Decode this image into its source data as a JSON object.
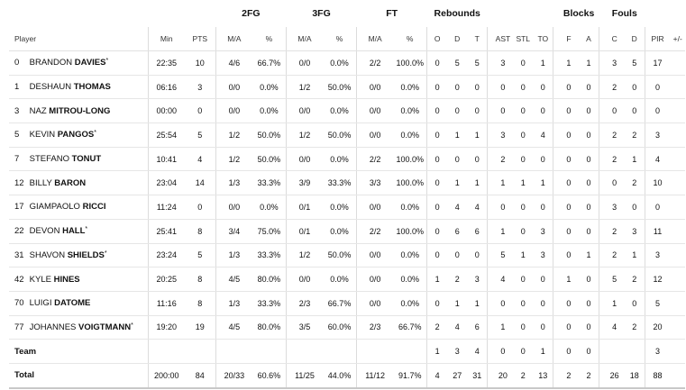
{
  "groups": {
    "fg2": "2FG",
    "fg3": "3FG",
    "ft": "FT",
    "rebounds": "Rebounds",
    "blocks": "Blocks",
    "fouls": "Fouls"
  },
  "headers": {
    "player": "Player",
    "min": "Min",
    "pts": "PTS",
    "fg2_ma": "M/A",
    "fg2_pct": "%",
    "fg3_ma": "M/A",
    "fg3_pct": "%",
    "ft_ma": "M/A",
    "ft_pct": "%",
    "o": "O",
    "d": "D",
    "t": "T",
    "ast": "AST",
    "stl": "STL",
    "to": "TO",
    "f": "F",
    "a": "A",
    "c": "C",
    "fd": "D",
    "pir": "PIR",
    "pm": "+/-"
  },
  "players": [
    {
      "num": "0",
      "first": "BRANDON",
      "last": "DAVIES",
      "starter": "*",
      "min": "22:35",
      "pts": "10",
      "fg2_ma": "4/6",
      "fg2_pct": "66.7%",
      "fg3_ma": "0/0",
      "fg3_pct": "0.0%",
      "ft_ma": "2/2",
      "ft_pct": "100.0%",
      "o": "0",
      "d": "5",
      "t": "5",
      "ast": "3",
      "stl": "0",
      "to": "1",
      "f": "1",
      "a": "1",
      "c": "3",
      "fd": "5",
      "pir": "17",
      "pm": ""
    },
    {
      "num": "1",
      "first": "DESHAUN",
      "last": "THOMAS",
      "starter": "",
      "min": "06:16",
      "pts": "3",
      "fg2_ma": "0/0",
      "fg2_pct": "0.0%",
      "fg3_ma": "1/2",
      "fg3_pct": "50.0%",
      "ft_ma": "0/0",
      "ft_pct": "0.0%",
      "o": "0",
      "d": "0",
      "t": "0",
      "ast": "0",
      "stl": "0",
      "to": "0",
      "f": "0",
      "a": "0",
      "c": "2",
      "fd": "0",
      "pir": "0",
      "pm": ""
    },
    {
      "num": "3",
      "first": "NAZ",
      "last": "MITROU-LONG",
      "starter": "",
      "min": "00:00",
      "pts": "0",
      "fg2_ma": "0/0",
      "fg2_pct": "0.0%",
      "fg3_ma": "0/0",
      "fg3_pct": "0.0%",
      "ft_ma": "0/0",
      "ft_pct": "0.0%",
      "o": "0",
      "d": "0",
      "t": "0",
      "ast": "0",
      "stl": "0",
      "to": "0",
      "f": "0",
      "a": "0",
      "c": "0",
      "fd": "0",
      "pir": "0",
      "pm": ""
    },
    {
      "num": "5",
      "first": "KEVIN",
      "last": "PANGOS",
      "starter": "*",
      "min": "25:54",
      "pts": "5",
      "fg2_ma": "1/2",
      "fg2_pct": "50.0%",
      "fg3_ma": "1/2",
      "fg3_pct": "50.0%",
      "ft_ma": "0/0",
      "ft_pct": "0.0%",
      "o": "0",
      "d": "1",
      "t": "1",
      "ast": "3",
      "stl": "0",
      "to": "4",
      "f": "0",
      "a": "0",
      "c": "2",
      "fd": "2",
      "pir": "3",
      "pm": ""
    },
    {
      "num": "7",
      "first": "STEFANO",
      "last": "TONUT",
      "starter": "",
      "min": "10:41",
      "pts": "4",
      "fg2_ma": "1/2",
      "fg2_pct": "50.0%",
      "fg3_ma": "0/0",
      "fg3_pct": "0.0%",
      "ft_ma": "2/2",
      "ft_pct": "100.0%",
      "o": "0",
      "d": "0",
      "t": "0",
      "ast": "2",
      "stl": "0",
      "to": "0",
      "f": "0",
      "a": "0",
      "c": "2",
      "fd": "1",
      "pir": "4",
      "pm": ""
    },
    {
      "num": "12",
      "first": "BILLY",
      "last": "BARON",
      "starter": "",
      "min": "23:04",
      "pts": "14",
      "fg2_ma": "1/3",
      "fg2_pct": "33.3%",
      "fg3_ma": "3/9",
      "fg3_pct": "33.3%",
      "ft_ma": "3/3",
      "ft_pct": "100.0%",
      "o": "0",
      "d": "1",
      "t": "1",
      "ast": "1",
      "stl": "1",
      "to": "1",
      "f": "0",
      "a": "0",
      "c": "0",
      "fd": "2",
      "pir": "10",
      "pm": ""
    },
    {
      "num": "17",
      "first": "GIAMPAOLO",
      "last": "RICCI",
      "starter": "",
      "min": "11:24",
      "pts": "0",
      "fg2_ma": "0/0",
      "fg2_pct": "0.0%",
      "fg3_ma": "0/1",
      "fg3_pct": "0.0%",
      "ft_ma": "0/0",
      "ft_pct": "0.0%",
      "o": "0",
      "d": "4",
      "t": "4",
      "ast": "0",
      "stl": "0",
      "to": "0",
      "f": "0",
      "a": "0",
      "c": "3",
      "fd": "0",
      "pir": "0",
      "pm": ""
    },
    {
      "num": "22",
      "first": "DEVON",
      "last": "HALL",
      "starter": "*",
      "min": "25:41",
      "pts": "8",
      "fg2_ma": "3/4",
      "fg2_pct": "75.0%",
      "fg3_ma": "0/1",
      "fg3_pct": "0.0%",
      "ft_ma": "2/2",
      "ft_pct": "100.0%",
      "o": "0",
      "d": "6",
      "t": "6",
      "ast": "1",
      "stl": "0",
      "to": "3",
      "f": "0",
      "a": "0",
      "c": "2",
      "fd": "3",
      "pir": "11",
      "pm": ""
    },
    {
      "num": "31",
      "first": "SHAVON",
      "last": "SHIELDS",
      "starter": "*",
      "min": "23:24",
      "pts": "5",
      "fg2_ma": "1/3",
      "fg2_pct": "33.3%",
      "fg3_ma": "1/2",
      "fg3_pct": "50.0%",
      "ft_ma": "0/0",
      "ft_pct": "0.0%",
      "o": "0",
      "d": "0",
      "t": "0",
      "ast": "5",
      "stl": "1",
      "to": "3",
      "f": "0",
      "a": "1",
      "c": "2",
      "fd": "1",
      "pir": "3",
      "pm": ""
    },
    {
      "num": "42",
      "first": "KYLE",
      "last": "HINES",
      "starter": "",
      "min": "20:25",
      "pts": "8",
      "fg2_ma": "4/5",
      "fg2_pct": "80.0%",
      "fg3_ma": "0/0",
      "fg3_pct": "0.0%",
      "ft_ma": "0/0",
      "ft_pct": "0.0%",
      "o": "1",
      "d": "2",
      "t": "3",
      "ast": "4",
      "stl": "0",
      "to": "0",
      "f": "1",
      "a": "0",
      "c": "5",
      "fd": "2",
      "pir": "12",
      "pm": ""
    },
    {
      "num": "70",
      "first": "LUIGI",
      "last": "DATOME",
      "starter": "",
      "min": "11:16",
      "pts": "8",
      "fg2_ma": "1/3",
      "fg2_pct": "33.3%",
      "fg3_ma": "2/3",
      "fg3_pct": "66.7%",
      "ft_ma": "0/0",
      "ft_pct": "0.0%",
      "o": "0",
      "d": "1",
      "t": "1",
      "ast": "0",
      "stl": "0",
      "to": "0",
      "f": "0",
      "a": "0",
      "c": "1",
      "fd": "0",
      "pir": "5",
      "pm": ""
    },
    {
      "num": "77",
      "first": "JOHANNES",
      "last": "VOIGTMANN",
      "starter": "*",
      "min": "19:20",
      "pts": "19",
      "fg2_ma": "4/5",
      "fg2_pct": "80.0%",
      "fg3_ma": "3/5",
      "fg3_pct": "60.0%",
      "ft_ma": "2/3",
      "ft_pct": "66.7%",
      "o": "2",
      "d": "4",
      "t": "6",
      "ast": "1",
      "stl": "0",
      "to": "0",
      "f": "0",
      "a": "0",
      "c": "4",
      "fd": "2",
      "pir": "20",
      "pm": ""
    }
  ],
  "team": {
    "label": "Team",
    "min": "",
    "pts": "",
    "fg2_ma": "",
    "fg2_pct": "",
    "fg3_ma": "",
    "fg3_pct": "",
    "ft_ma": "",
    "ft_pct": "",
    "o": "1",
    "d": "3",
    "t": "4",
    "ast": "0",
    "stl": "0",
    "to": "1",
    "f": "0",
    "a": "0",
    "c": "",
    "fd": "",
    "pir": "3",
    "pm": ""
  },
  "total": {
    "label": "Total",
    "min": "200:00",
    "pts": "84",
    "fg2_ma": "20/33",
    "fg2_pct": "60.6%",
    "fg3_ma": "11/25",
    "fg3_pct": "44.0%",
    "ft_ma": "11/12",
    "ft_pct": "91.7%",
    "o": "4",
    "d": "27",
    "t": "31",
    "ast": "20",
    "stl": "2",
    "to": "13",
    "f": "2",
    "a": "2",
    "c": "26",
    "fd": "18",
    "pir": "88",
    "pm": ""
  }
}
